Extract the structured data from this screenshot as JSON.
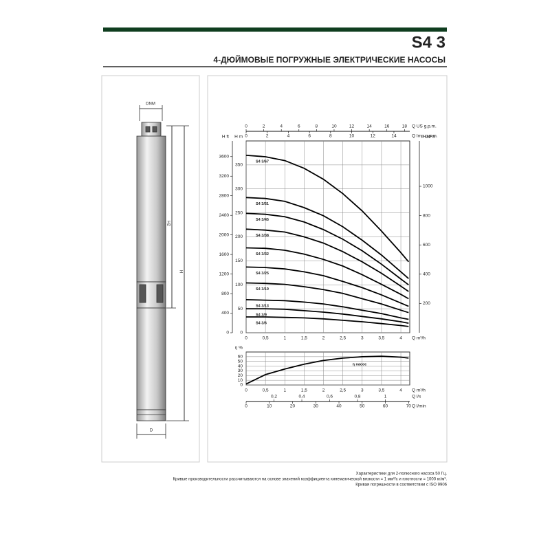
{
  "header": {
    "title": "S4 3",
    "subtitle": "4-ДЮЙМОВЫЕ ПОГРУЖНЫЕ ЭЛЕКТРИЧЕСКИЕ НАСОСЫ"
  },
  "pump_drawing": {
    "labels": [
      "DNM",
      "H2",
      "H",
      "D"
    ]
  },
  "chart_data": [
    {
      "type": "line",
      "x": [
        0,
        0.5,
        1,
        1.5,
        2,
        2.5,
        3,
        3.5,
        4,
        4.2
      ],
      "xlim": [
        0,
        4.23
      ],
      "xticks": [
        0,
        {
          "value": 0.5,
          "label": "0,5"
        },
        1,
        {
          "value": 1.5,
          "label": "1,5"
        },
        2,
        {
          "value": 2.5,
          "label": "2,5"
        },
        3,
        {
          "value": 3.5,
          "label": "3,5"
        },
        4
      ],
      "xlabel": "Q m³/h",
      "ylim": [
        0,
        400
      ],
      "yticks": [
        0,
        50,
        100,
        150,
        200,
        250,
        300,
        350
      ],
      "ylabel": "H m",
      "grid": true,
      "extra_x_axes": [
        {
          "label": "Q US g.p.m.",
          "xlim": [
            0,
            18.6
          ],
          "xticks": [
            0,
            2,
            4,
            6,
            8,
            10,
            12,
            14,
            16,
            18
          ]
        },
        {
          "label": "Q Imp g.p.m.",
          "xlim": [
            0,
            15.5
          ],
          "xticks": [
            0,
            2,
            4,
            6,
            8,
            10,
            12,
            14
          ]
        }
      ],
      "extra_y_axes": [
        {
          "label": "H ft",
          "ylim": [
            0,
            3920
          ],
          "yticks": [
            0,
            400,
            800,
            1200,
            1600,
            2000,
            2400,
            2800,
            3200,
            3600
          ]
        },
        {
          "label": "H kPa",
          "ylim": [
            0,
            1310
          ],
          "yticks": [
            200,
            400,
            600,
            800,
            1000
          ]
        }
      ],
      "series": [
        {
          "name": "S4 3/67",
          "color": "#000000",
          "values": [
            370,
            367,
            359,
            343,
            320,
            290,
            254,
            212,
            167,
            148
          ]
        },
        {
          "name": "S4 3/51",
          "color": "#000000",
          "values": [
            282,
            280,
            274,
            261,
            244,
            221,
            193,
            162,
            127,
            113
          ]
        },
        {
          "name": "S4 3/45",
          "color": "#000000",
          "values": [
            249,
            247,
            242,
            231,
            215,
            195,
            171,
            143,
            112,
            100
          ]
        },
        {
          "name": "S4 3/38",
          "color": "#000000",
          "values": [
            216,
            214,
            210,
            200,
            187,
            169,
            148,
            124,
            97,
            86
          ]
        },
        {
          "name": "S4 3/32",
          "color": "#000000",
          "values": [
            177,
            176,
            172,
            164,
            153,
            139,
            121,
            101,
            80,
            71
          ]
        },
        {
          "name": "S4 3/25",
          "color": "#000000",
          "values": [
            137,
            136,
            133,
            127,
            119,
            107,
            94,
            79,
            62,
            55
          ]
        },
        {
          "name": "S4 3/19",
          "color": "#000000",
          "values": [
            104,
            103,
            101,
            96,
            90,
            82,
            71,
            60,
            47,
            42
          ]
        },
        {
          "name": "S4 3/13",
          "color": "#000000",
          "values": [
            69,
            68,
            67,
            64,
            60,
            54,
            47,
            40,
            31,
            28
          ]
        },
        {
          "name": "S4 3/9",
          "color": "#000000",
          "values": [
            50,
            50,
            49,
            46,
            43,
            39,
            34,
            29,
            23,
            20
          ]
        },
        {
          "name": "S4 3/6",
          "color": "#000000",
          "values": [
            33,
            33,
            32,
            31,
            29,
            26,
            23,
            19,
            15,
            13
          ]
        }
      ]
    },
    {
      "type": "line",
      "x": [
        0,
        0.5,
        1,
        1.5,
        2,
        2.5,
        3,
        3.5,
        4,
        4.2
      ],
      "xlim": [
        0,
        4.23
      ],
      "xticks": [
        0,
        {
          "value": 0.5,
          "label": "0,5"
        },
        1,
        {
          "value": 1.5,
          "label": "1,5"
        },
        2,
        {
          "value": 2.5,
          "label": "2,5"
        },
        3,
        {
          "value": 3.5,
          "label": "3,5"
        },
        4
      ],
      "xlabel": "Q m³/h",
      "ylim": [
        0,
        70
      ],
      "yticks": [
        0,
        10,
        20,
        30,
        40,
        50,
        60
      ],
      "ylabel": "η %",
      "grid": true,
      "extra_x_axes": [
        {
          "label": "Q l/s",
          "xlim": [
            0,
            1.175
          ],
          "xticks": [
            {
              "value": 0.2,
              "label": "0,2"
            },
            {
              "value": 0.4,
              "label": "0,4"
            },
            {
              "value": 0.6,
              "label": "0,6"
            },
            {
              "value": 0.8,
              "label": "0,8"
            },
            1
          ]
        },
        {
          "label": "Q l/min",
          "xlim": [
            0,
            70.5
          ],
          "xticks": [
            0,
            10,
            20,
            30,
            40,
            50,
            60,
            70
          ]
        }
      ],
      "extra_y_axes": [],
      "series": [
        {
          "name": "η насос",
          "color": "#000000",
          "values": [
            2,
            22,
            34,
            44,
            52,
            57,
            60,
            61,
            59,
            57
          ]
        }
      ]
    }
  ],
  "footer": {
    "lines": [
      "Характеристики для 2-полюсного насоса 50 Гц.",
      "Кривые производительности рассчитываются на основе значений коэффициента кинематической вязкости = 1 мм²/с и плотности = 1000 кг/м³.",
      "Кривая погрешности в соответствии с ISO 9906"
    ]
  }
}
